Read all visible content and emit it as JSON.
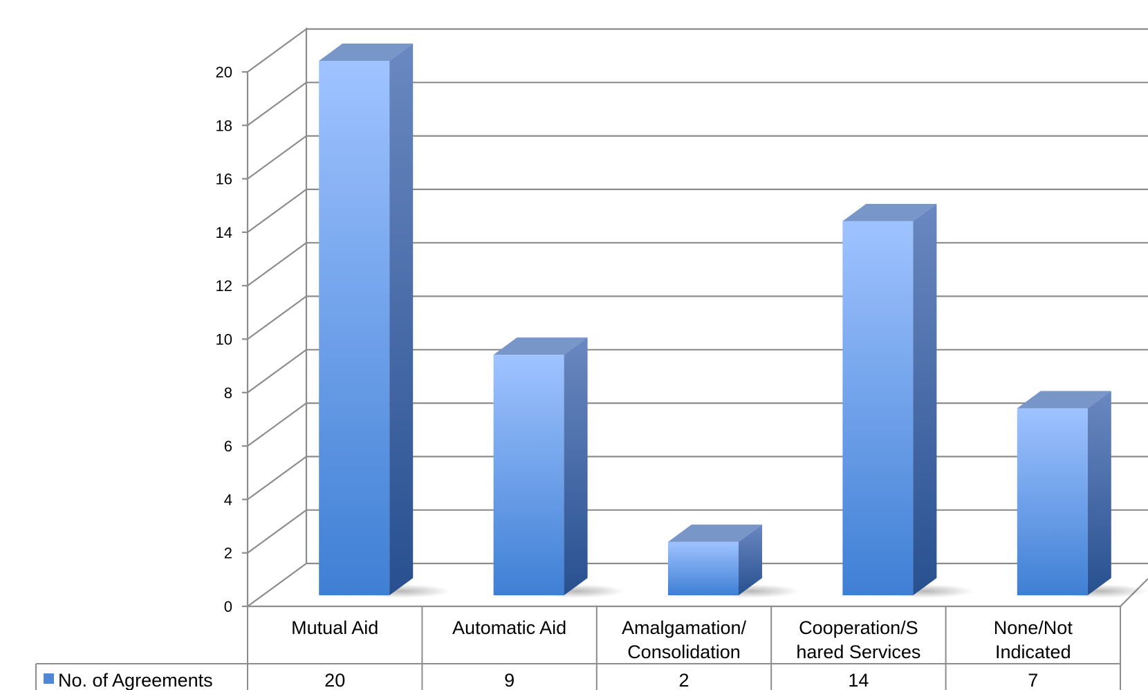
{
  "chart_data": {
    "type": "bar",
    "categories": [
      [
        "Mutual Aid"
      ],
      [
        "Automatic Aid"
      ],
      [
        "Amalgamation/",
        "Consolidation"
      ],
      [
        "Cooperation/S",
        "hared Services"
      ],
      [
        "None/Not",
        "Indicated"
      ]
    ],
    "series": [
      {
        "name": "No. of Agreements",
        "values": [
          20,
          9,
          2,
          14,
          7
        ]
      }
    ],
    "value_labels": [
      "20",
      "9",
      "2",
      "14",
      "7"
    ],
    "y_ticks": [
      "0",
      "2",
      "4",
      "6",
      "8",
      "10",
      "12",
      "14",
      "16",
      "18",
      "20"
    ],
    "ylim": [
      0,
      20
    ],
    "data_table": true,
    "legend_placement": "data-table-left",
    "colors": {
      "bar_front_top": "#9fc3ff",
      "bar_front_bottom": "#3f7fd4",
      "bar_side_top": "#6a88c1",
      "bar_side_bottom": "#28508f",
      "bar_top": "#7996c8",
      "grid": "#8c8c8c",
      "legend_swatch": "#4f86d6"
    }
  }
}
